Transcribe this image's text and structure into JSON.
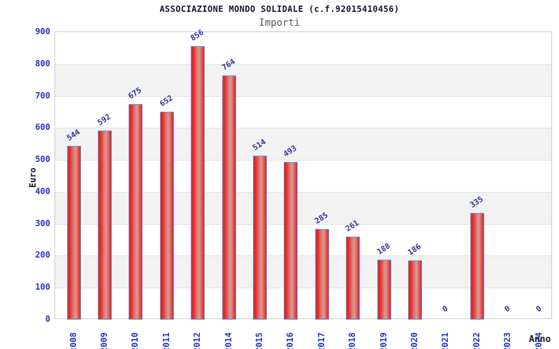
{
  "chart_data": {
    "type": "bar",
    "title": "ASSOCIAZIONE MONDO SOLIDALE (c.f.92015410456)",
    "subtitle": "Importi",
    "xlabel": "Anno",
    "ylabel": "Euro",
    "categories": [
      "2008",
      "2009",
      "2010",
      "2011",
      "2012",
      "2014",
      "2015",
      "2016",
      "2017",
      "2018",
      "2019",
      "2020",
      "2021",
      "2022",
      "2023",
      "2024"
    ],
    "values": [
      544,
      592,
      675,
      652,
      856,
      764,
      514,
      493,
      285,
      261,
      188,
      186,
      0,
      335,
      0,
      0
    ],
    "ylim": [
      0,
      900
    ],
    "ytick_step": 100,
    "yticks": [
      0,
      100,
      200,
      300,
      400,
      500,
      600,
      700,
      800,
      900
    ],
    "grid": "horizontal",
    "legend": "none",
    "colors": {
      "bar_fill_edge": "#e32020",
      "bar_fill_mid": "#d89a96",
      "bar_border": "#5b9ddc",
      "tick_label": "#2233cc",
      "value_label": "#333399",
      "title": "#14142b",
      "subtitle": "#5a5a5a",
      "band": "#f2f2f2",
      "gridline": "#e2e2e2",
      "plot_border": "#cccccc"
    }
  }
}
